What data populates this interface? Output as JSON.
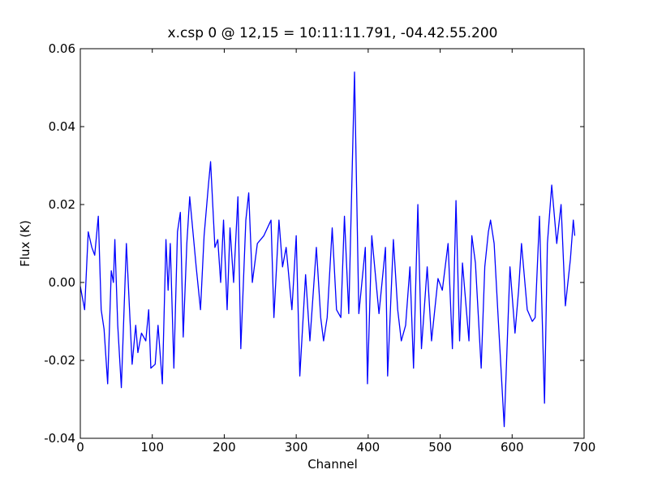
{
  "chart_data": {
    "type": "line",
    "title": "x.csp 0 @ 12,15 = 10:11:11.791, -04.42.55.200",
    "xlabel": "Channel",
    "ylabel": "Flux (K)",
    "xlim": [
      0,
      700
    ],
    "xticks": [
      0,
      100,
      200,
      300,
      400,
      500,
      600,
      700
    ],
    "ylim": [
      -0.04,
      0.06
    ],
    "yticks": [
      {
        "value": -0.04,
        "label": "-0.04"
      },
      {
        "value": -0.02,
        "label": "-0.02"
      },
      {
        "value": 0,
        "label": "0.00"
      },
      {
        "value": 0.02,
        "label": "0.02"
      },
      {
        "value": 0.04,
        "label": "0.04"
      },
      {
        "value": 0.06,
        "label": "0.06"
      }
    ],
    "series": [
      {
        "color": "#0000ff",
        "x": [
          0,
          6,
          11,
          16,
          20,
          25,
          29,
          33,
          38,
          43,
          46,
          48,
          52,
          57,
          64,
          72,
          77,
          80,
          85,
          91,
          95,
          98,
          104,
          108,
          114,
          119,
          122,
          125,
          130,
          135,
          139,
          143,
          148,
          152,
          158,
          161,
          167,
          172,
          178,
          181,
          187,
          191,
          195,
          199,
          204,
          208,
          213,
          219,
          223,
          230,
          234,
          239,
          246,
          255,
          265,
          269,
          276,
          281,
          286,
          294,
          300,
          305,
          313,
          319,
          328,
          334,
          338,
          343,
          350,
          356,
          362,
          367,
          373,
          381,
          387,
          396,
          399,
          405,
          409,
          415,
          424,
          427,
          435,
          441,
          446,
          452,
          458,
          463,
          469,
          474,
          482,
          488,
          497,
          503,
          511,
          517,
          522,
          527,
          531,
          540,
          544,
          549,
          557,
          562,
          567,
          570,
          575,
          580,
          589,
          597,
          604,
          609,
          613,
          621,
          628,
          632,
          638,
          645,
          649,
          655,
          662,
          668,
          674,
          681,
          685,
          687
        ],
        "values": [
          -0.001,
          -0.007,
          0.013,
          0.009,
          0.007,
          0.017,
          -0.007,
          -0.012,
          -0.026,
          0.003,
          0,
          0.011,
          -0.011,
          -0.027,
          0.01,
          -0.021,
          -0.011,
          -0.018,
          -0.013,
          -0.015,
          -0.007,
          -0.022,
          -0.021,
          -0.011,
          -0.026,
          0.011,
          -0.002,
          0.01,
          -0.022,
          0.013,
          0.018,
          -0.014,
          0.01,
          0.022,
          0.01,
          0.004,
          -0.007,
          0.012,
          0.025,
          0.031,
          0.009,
          0.011,
          0,
          0.016,
          -0.007,
          0.014,
          0,
          0.022,
          -0.017,
          0.016,
          0.023,
          0,
          0.01,
          0.012,
          0.016,
          -0.009,
          0.016,
          0.004,
          0.009,
          -0.007,
          0.012,
          -0.024,
          0.002,
          -0.015,
          0.009,
          -0.009,
          -0.015,
          -0.009,
          0.014,
          -0.007,
          -0.009,
          0.017,
          -0.008,
          0.054,
          -0.008,
          0.009,
          -0.026,
          0.012,
          0.004,
          -0.008,
          0.009,
          -0.024,
          0.011,
          -0.007,
          -0.015,
          -0.011,
          0.004,
          -0.022,
          0.02,
          -0.017,
          0.004,
          -0.015,
          0.001,
          -0.002,
          0.01,
          -0.017,
          0.021,
          -0.015,
          0.005,
          -0.015,
          0.012,
          0.005,
          -0.022,
          0.004,
          0.013,
          0.016,
          0.01,
          -0.007,
          -0.037,
          0.004,
          -0.013,
          -0.002,
          0.01,
          -0.007,
          -0.01,
          -0.009,
          0.017,
          -0.031,
          0.01,
          0.025,
          0.01,
          0.02,
          -0.006,
          0.006,
          0.016,
          0.012
        ]
      }
    ]
  }
}
